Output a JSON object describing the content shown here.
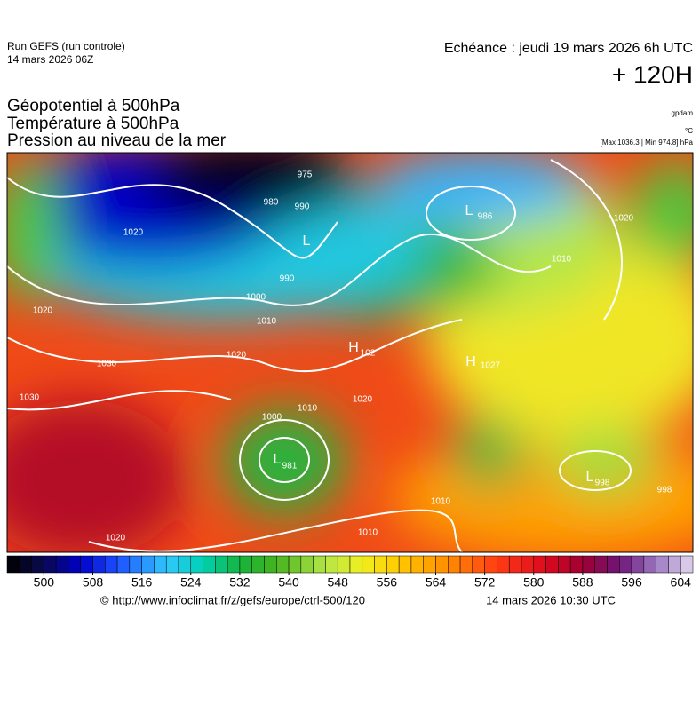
{
  "header": {
    "run": "Run GEFS (run controle)",
    "run_date": "14 mars 2026 06Z",
    "valid": "Echéance : jeudi 19 mars 2026 6h UTC",
    "lead": "+ 120H",
    "fields": [
      "Géopotentiel à 500hPa",
      "Température à 500hPa",
      "Pression au niveau de la mer"
    ],
    "unit_geo": "gpdam",
    "unit_temp": "°C",
    "pressure_range": "[Max 1036.3 | Min 974.8] hPa"
  },
  "map_labels": [
    "975",
    "990",
    "980",
    "L",
    "L",
    "986",
    "1000",
    "990",
    "1010",
    "1020",
    "1020",
    "1030",
    "1020",
    "H",
    "102",
    "H",
    "1027",
    "1030",
    "1010",
    "1020",
    "1000",
    "L",
    "981",
    "1010",
    "1020",
    "1010",
    "L",
    "998",
    "998",
    "1010",
    "1020"
  ],
  "colorbar": {
    "range": [
      494,
      606
    ],
    "step": 2,
    "ticks": [
      500,
      508,
      516,
      524,
      532,
      540,
      548,
      556,
      564,
      572,
      580,
      588,
      596,
      604
    ],
    "colorscale": [
      [
        494,
        "#000000"
      ],
      [
        500,
        "#0a0a50"
      ],
      [
        506,
        "#0000c8"
      ],
      [
        512,
        "#1e50ff"
      ],
      [
        520,
        "#30c8ff"
      ],
      [
        526,
        "#00d2b4"
      ],
      [
        532,
        "#14b43c"
      ],
      [
        538,
        "#46b41e"
      ],
      [
        546,
        "#b4e646"
      ],
      [
        552,
        "#f0f01e"
      ],
      [
        558,
        "#ffc800"
      ],
      [
        566,
        "#ff8c00"
      ],
      [
        574,
        "#ff3c14"
      ],
      [
        582,
        "#dc0a1e"
      ],
      [
        588,
        "#a00032"
      ],
      [
        594,
        "#6e1478"
      ],
      [
        600,
        "#9a78c0"
      ],
      [
        606,
        "#e6d8f0"
      ]
    ]
  },
  "footer": {
    "url": "© http://www.infoclimat.fr/z/gefs/europe/ctrl-500/120",
    "issued": "14 mars 2026 10:30 UTC"
  }
}
